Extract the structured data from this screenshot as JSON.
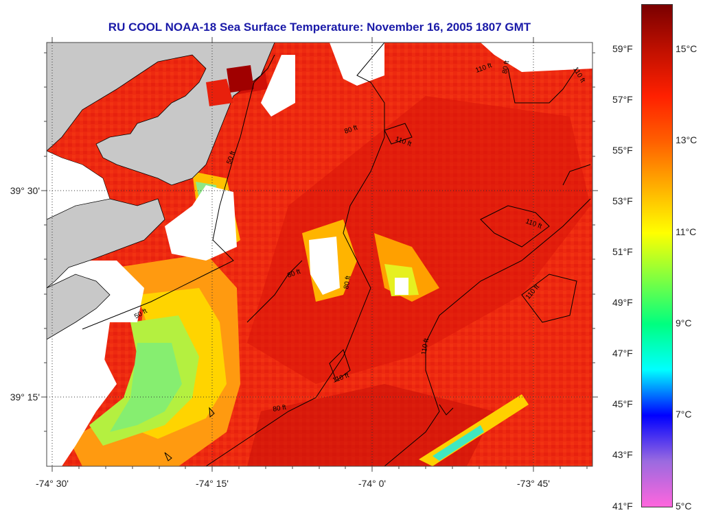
{
  "title": "RU COOL  NOAA-18  Sea Surface Temperature:  November 16, 2005 1807 GMT",
  "x_axis_labels": [
    "-74° 30'",
    "-74° 15'",
    "-74° 0'",
    "-73° 45'"
  ],
  "y_axis_labels": [
    "39° 30'",
    "39° 15'"
  ],
  "fahrenheit_labels": [
    "59°F",
    "57°F",
    "55°F",
    "53°F",
    "51°F",
    "49°F",
    "47°F",
    "45°F",
    "43°F",
    "41°F"
  ],
  "celsius_labels": [
    "15°C",
    "13°C",
    "11°C",
    "9°C",
    "7°C",
    "5°C"
  ],
  "contour_labels": [
    "110 ft",
    "80 ft",
    "110 ft",
    "80 ft",
    "110 ft",
    "50 ft",
    "110 ft",
    "80 ft",
    "80 ft",
    "110 ft",
    "110 ft",
    "50 ft",
    "110 ft",
    "80 ft"
  ],
  "colors": {
    "land": "#c8c8c8",
    "title": "#1a1aa8",
    "colorbar": [
      "#ff66dd",
      "#9a6ae0",
      "#0000ff",
      "#00ffff",
      "#00ff80",
      "#80ff40",
      "#ffff00",
      "#ffb000",
      "#ff6000",
      "#ff2000",
      "#c01000",
      "#7a0000"
    ]
  }
}
